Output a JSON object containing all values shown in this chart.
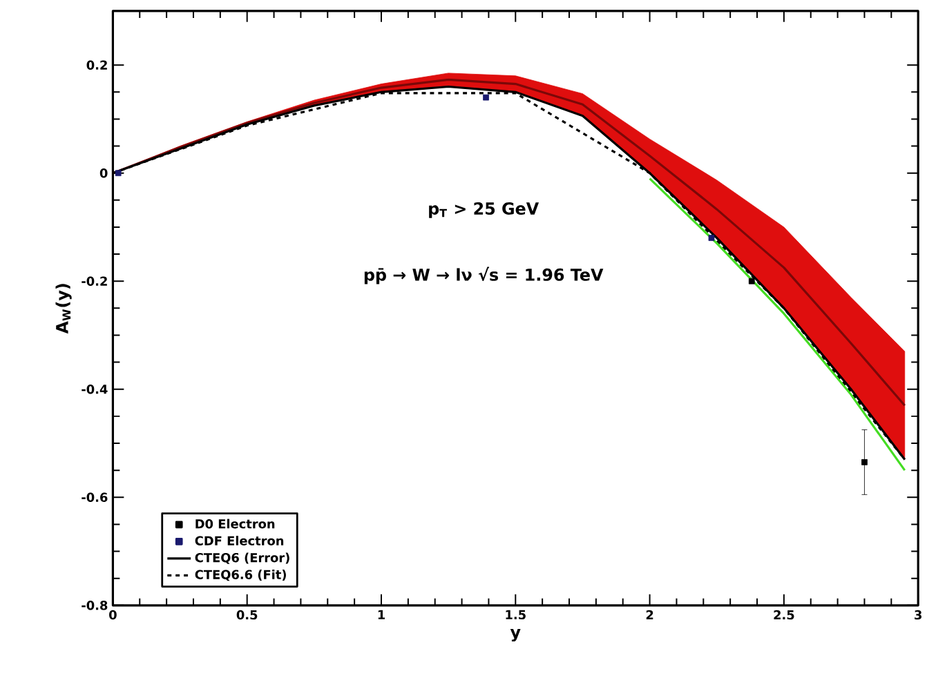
{
  "chart_data": {
    "type": "line",
    "xlabel": "y",
    "ylabel": "A$_{W}$(y)",
    "annotations": [
      "p$_{T}$ > 25 GeV",
      "pp̄ → W → lν   √s = 1.96 TeV"
    ],
    "xlim": [
      0,
      3
    ],
    "ylim": [
      -0.8,
      0.3
    ],
    "xticks": [
      0,
      0.5,
      1,
      1.5,
      2,
      2.5,
      3
    ],
    "yticks": [
      -0.8,
      -0.6,
      -0.4,
      -0.2,
      0,
      0.2
    ],
    "legend": "bottom left",
    "grid": false,
    "series": [
      {
        "color": "#7b0808",
        "x": [
          0,
          0.25,
          0.5,
          0.75,
          1.0,
          1.25,
          1.5,
          1.75,
          2.0,
          2.25,
          2.5,
          2.75,
          2.95
        ],
        "lower": [
          0,
          0.045,
          0.09,
          0.125,
          0.15,
          0.16,
          0.15,
          0.106,
          0.0,
          -0.12,
          -0.25,
          -0.4,
          -0.53
        ],
        "values": [
          0,
          0.048,
          0.093,
          0.13,
          0.158,
          0.173,
          0.165,
          0.127,
          0.032,
          -0.067,
          -0.175,
          -0.315,
          -0.43
        ],
        "upper": [
          0,
          0.05,
          0.095,
          0.135,
          0.165,
          0.185,
          0.18,
          0.147,
          0.063,
          -0.013,
          -0.1,
          -0.23,
          -0.33
        ]
      },
      {
        "name": "D0 Electron",
        "type": "scatter",
        "color": "#000000",
        "x": [
          2.38,
          2.8
        ],
        "values": [
          -0.2,
          -0.535
        ],
        "errors": [
          null,
          0.06
        ]
      },
      {
        "name": "CDF Electron",
        "type": "scatter",
        "color": "#1a1a6e",
        "x": [
          0.02,
          1.39,
          2.23
        ],
        "values": [
          0,
          0.14,
          -0.12
        ]
      },
      {
        "name": "CTEQ6 (Error)",
        "type": "line",
        "color": "#000000",
        "line_style": "solid",
        "x": [
          0,
          0.25,
          0.5,
          0.75,
          1.0,
          1.25,
          1.5,
          1.75,
          2.0,
          2.25,
          2.5,
          2.75,
          2.95
        ],
        "values": [
          0,
          0.045,
          0.09,
          0.125,
          0.15,
          0.16,
          0.15,
          0.106,
          0.0,
          -0.12,
          -0.25,
          -0.4,
          -0.53
        ]
      },
      {
        "name": "CTEQ6.6 (Fit)",
        "type": "line",
        "color": "#000000",
        "line_style": "dashed",
        "x": [
          0,
          0.5,
          1.0,
          1.5,
          2.0,
          2.5,
          2.95
        ],
        "values": [
          0,
          0.088,
          0.148,
          0.148,
          0.0,
          -0.25,
          -0.53
        ]
      },
      {
        "type": "line",
        "color": "#44dd22",
        "line_style": "solid",
        "x": [
          2.0,
          2.25,
          2.5,
          2.75,
          2.95
        ],
        "values": [
          -0.01,
          -0.13,
          -0.26,
          -0.41,
          -0.55
        ]
      }
    ]
  }
}
